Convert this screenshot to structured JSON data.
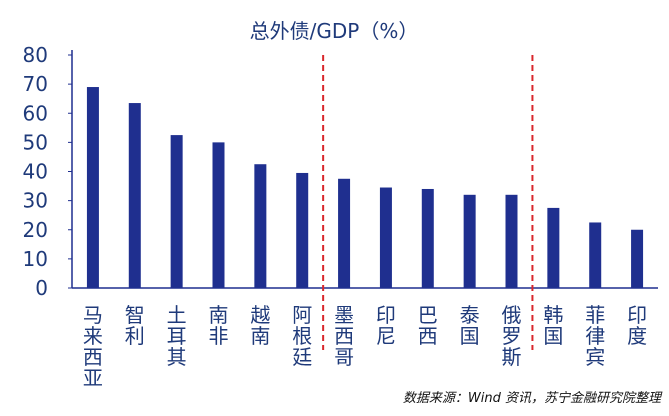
{
  "chart_data": {
    "type": "bar",
    "title": "总外债/GDP（%）",
    "categories": [
      "马来西亚",
      "智利",
      "土耳其",
      "南非",
      "越南",
      "阿根廷",
      "墨西哥",
      "印尼",
      "巴西",
      "泰国",
      "俄罗斯",
      "韩国",
      "菲律宾",
      "印度"
    ],
    "values": [
      69,
      63.5,
      52.5,
      50,
      42.5,
      39.5,
      37.5,
      34.5,
      34,
      32,
      32,
      27.5,
      22.5,
      20
    ],
    "xlabel": "",
    "ylabel": "",
    "ylim": [
      0,
      80
    ],
    "yticks": [
      0,
      10,
      20,
      30,
      40,
      50,
      60,
      70,
      80
    ],
    "grid": false,
    "legend": "none",
    "group_dividers_after_index": [
      5,
      10
    ],
    "colors": {
      "bar": "#1f2f8f",
      "axis": "#1f2f8f",
      "divider": "#d9262b",
      "title": "#1f3a7a",
      "ticks": "#1f3a7a"
    }
  },
  "source_note": "数据来源：Wind 资讯，苏宁金融研究院整理"
}
